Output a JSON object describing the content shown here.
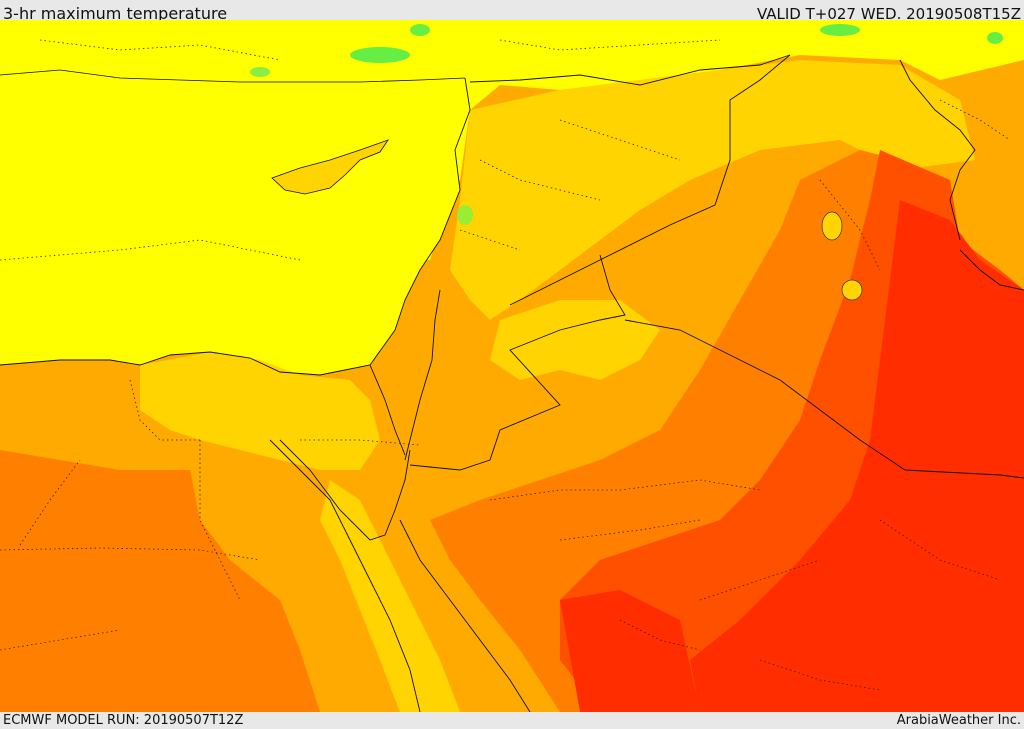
{
  "header": {
    "title": "3-hr maximum temperature",
    "valid": "VALID T+027 WED. 20190508T15Z"
  },
  "footer": {
    "model_run": "ECMWF MODEL RUN: 20190507T12Z",
    "credit": "ArabiaWeather Inc."
  },
  "palette": {
    "sea_yellow": "#ffff00",
    "light_orange": "#ffd400",
    "orange": "#ffaa00",
    "dark_orange": "#ff8000",
    "red_orange": "#ff5000",
    "red": "#ff2d00",
    "green": "#66ee44"
  }
}
